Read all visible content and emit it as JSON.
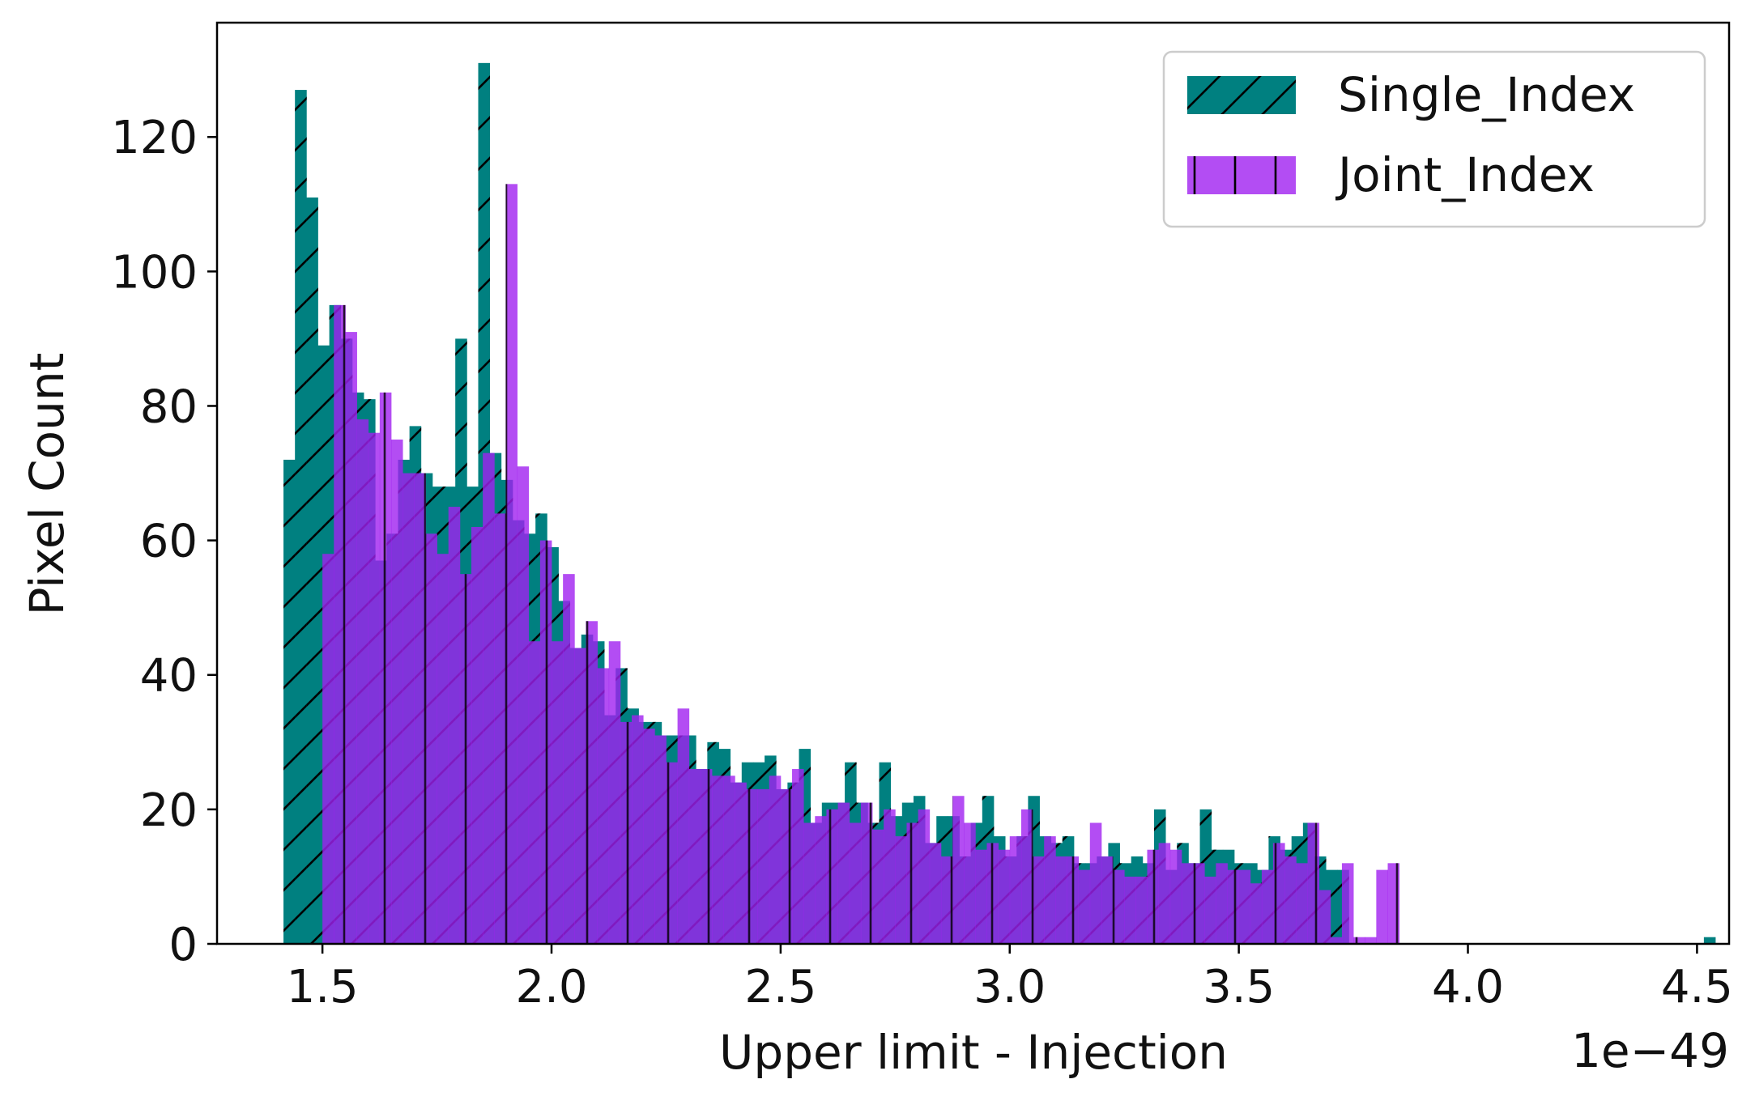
{
  "chart_data": {
    "type": "bar",
    "subtype": "overlaid-histogram",
    "title": "",
    "xlabel": "Upper limit - Injection",
    "ylabel": "Pixel Count",
    "x_offset_label": "1e−49",
    "x_scale_factor": "1e-49",
    "xlim": [
      1.27,
      4.57
    ],
    "ylim": [
      0,
      137
    ],
    "xticks": [
      1.5,
      2.0,
      2.5,
      3.0,
      3.5,
      4.0,
      4.5
    ],
    "xtick_labels": [
      "1.5",
      "2.0",
      "2.5",
      "3.0",
      "3.5",
      "4.0",
      "4.5"
    ],
    "yticks": [
      0,
      20,
      40,
      60,
      80,
      100,
      120
    ],
    "ytick_labels": [
      "0",
      "20",
      "40",
      "60",
      "80",
      "100",
      "120"
    ],
    "grid": false,
    "legend_position": "top-right",
    "bin_width": 0.025,
    "series": [
      {
        "name": "Single_Index",
        "color": "#008080",
        "hatch": "diagonal",
        "bin_start": 1.415,
        "values": [
          72,
          127,
          111,
          89,
          95,
          90,
          82,
          81,
          57,
          61,
          72,
          77,
          70,
          68,
          68,
          90,
          68,
          131,
          73,
          69,
          63,
          61,
          64,
          59,
          51,
          44,
          46,
          45,
          34,
          41,
          35,
          33,
          33,
          31,
          31,
          31,
          26,
          30,
          29,
          24,
          27,
          27,
          28,
          23,
          24,
          29,
          18,
          21,
          21,
          27,
          21,
          18,
          27,
          19,
          21,
          22,
          15,
          19,
          19,
          13,
          18,
          22,
          16,
          13,
          16,
          22,
          16,
          15,
          16,
          12,
          12,
          13,
          15,
          12,
          13,
          12,
          20,
          11,
          15,
          12,
          20,
          14,
          14,
          12,
          12,
          11,
          16,
          14,
          16,
          18,
          13,
          11,
          11,
          0,
          0,
          0,
          0,
          0,
          0,
          0,
          0,
          0,
          0,
          0,
          0,
          0,
          0,
          0,
          0,
          0,
          0,
          0,
          0,
          0,
          0,
          0,
          0,
          0,
          0,
          0,
          0,
          0,
          0,
          0,
          1
        ]
      },
      {
        "name": "Joint_Index",
        "color": "#a020f0",
        "hatch": "vertical",
        "bin_start": 1.5,
        "values": [
          58,
          95,
          91,
          78,
          76,
          82,
          75,
          70,
          70,
          61,
          58,
          65,
          55,
          62,
          73,
          64,
          113,
          71,
          45,
          60,
          45,
          55,
          44,
          48,
          41,
          45,
          33,
          34,
          32,
          31,
          27,
          35,
          26,
          26,
          25,
          25,
          24,
          23,
          23,
          25,
          23,
          26,
          18,
          19,
          20,
          21,
          18,
          21,
          17,
          20,
          16,
          18,
          20,
          15,
          13,
          22,
          18,
          14,
          15,
          14,
          16,
          20,
          13,
          16,
          13,
          13,
          11,
          18,
          13,
          11,
          10,
          10,
          14,
          15,
          14,
          12,
          12,
          10,
          12,
          11,
          11,
          9,
          11,
          15,
          13,
          12,
          18,
          8,
          1,
          12,
          1,
          1,
          11,
          12,
          0,
          0,
          0,
          0,
          0,
          0,
          0,
          0,
          0,
          0,
          0,
          0,
          0,
          0,
          0,
          0,
          0,
          0,
          0,
          0,
          0,
          0,
          0,
          0,
          0
        ]
      }
    ]
  }
}
